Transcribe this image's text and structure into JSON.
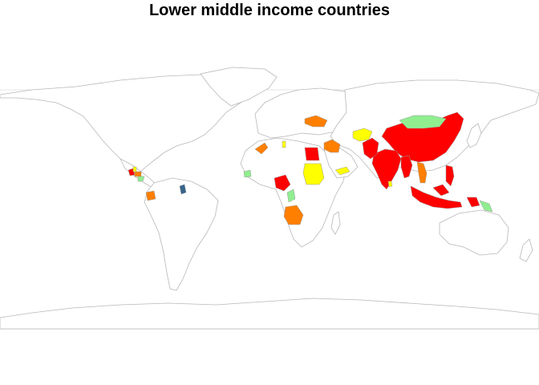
{
  "title": "Lower middle income countries",
  "colors": {
    "highest": "#ff0000",
    "high": "#ff7f00",
    "mid": "#ffff00",
    "low": "#90ee90",
    "lowest": "#36648b"
  },
  "chart_data": {
    "type": "choropleth map",
    "title": "Lower middle income countries",
    "legend": "none",
    "regions": [
      {
        "country": "China",
        "class": "highest"
      },
      {
        "country": "India",
        "class": "highest"
      },
      {
        "country": "Indonesia",
        "class": "highest"
      },
      {
        "country": "Philippines",
        "class": "highest"
      },
      {
        "country": "Papua New Guinea",
        "class": "highest"
      },
      {
        "country": "Egypt",
        "class": "highest"
      },
      {
        "country": "Nigeria",
        "class": "highest"
      },
      {
        "country": "Pakistan",
        "class": "highest"
      },
      {
        "country": "Bangladesh",
        "class": "highest"
      },
      {
        "country": "Myanmar",
        "class": "highest"
      },
      {
        "country": "Guatemala",
        "class": "highest"
      },
      {
        "country": "Vietnam",
        "class": "high"
      },
      {
        "country": "Angola",
        "class": "high"
      },
      {
        "country": "Ukraine",
        "class": "high"
      },
      {
        "country": "Morocco",
        "class": "high"
      },
      {
        "country": "Syria",
        "class": "high"
      },
      {
        "country": "Iraq",
        "class": "high"
      },
      {
        "country": "Ecuador",
        "class": "high"
      },
      {
        "country": "Honduras",
        "class": "high"
      },
      {
        "country": "Sudan",
        "class": "mid"
      },
      {
        "country": "Uzbekistan",
        "class": "mid"
      },
      {
        "country": "Turkmenistan",
        "class": "mid"
      },
      {
        "country": "Yemen",
        "class": "mid"
      },
      {
        "country": "Tunisia",
        "class": "mid"
      },
      {
        "country": "Sri Lanka",
        "class": "mid"
      },
      {
        "country": "Belize",
        "class": "mid"
      },
      {
        "country": "Mongolia",
        "class": "low"
      },
      {
        "country": "Senegal",
        "class": "low"
      },
      {
        "country": "Congo",
        "class": "low"
      },
      {
        "country": "Nicaragua",
        "class": "low"
      },
      {
        "country": "Solomon Islands",
        "class": "low"
      },
      {
        "country": "Guyana",
        "class": "lowest"
      }
    ]
  }
}
